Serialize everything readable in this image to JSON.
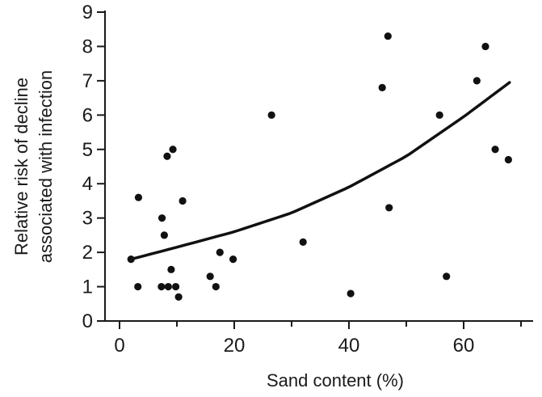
{
  "chart_data": {
    "type": "scatter",
    "xlabel": "Sand content (%)",
    "ylabel_lines": [
      "Relative risk of decline",
      "associated with infection"
    ],
    "xlim": [
      0,
      70
    ],
    "ylim": [
      0,
      9
    ],
    "xticks": [
      0,
      10,
      20,
      30,
      40,
      50,
      60,
      70
    ],
    "xtick_labels": [
      0,
      20,
      40,
      60
    ],
    "yticks": [
      0,
      1,
      2,
      3,
      4,
      5,
      6,
      7,
      8,
      9
    ],
    "grid": false,
    "legend": "none",
    "colors": {
      "points": "#111111",
      "trend": "#111111",
      "axis": "#1a1a1a"
    },
    "series": [
      {
        "points": [
          [
            2,
            1.8
          ],
          [
            3.2,
            1.0
          ],
          [
            3.3,
            3.6
          ],
          [
            7.3,
            1.0
          ],
          [
            7.4,
            3.0
          ],
          [
            7.8,
            2.5
          ],
          [
            8.3,
            4.8
          ],
          [
            8.5,
            1.0
          ],
          [
            9,
            1.5
          ],
          [
            9.3,
            5.0
          ],
          [
            9.8,
            1.0
          ],
          [
            10.3,
            0.7
          ],
          [
            11,
            3.5
          ],
          [
            15.8,
            1.3
          ],
          [
            16.8,
            1.0
          ],
          [
            17.5,
            2.0
          ],
          [
            19.8,
            1.8
          ],
          [
            26.5,
            6.0
          ],
          [
            32,
            2.3
          ],
          [
            40.3,
            0.8
          ],
          [
            45.8,
            6.8
          ],
          [
            46.8,
            8.3
          ],
          [
            47,
            3.3
          ],
          [
            55.8,
            6.0
          ],
          [
            57,
            1.3
          ],
          [
            62.3,
            7.0
          ],
          [
            63.8,
            8.0
          ],
          [
            65.5,
            5.0
          ],
          [
            67.8,
            4.7
          ]
        ]
      }
    ],
    "trend_line": {
      "type": "exponential",
      "points": [
        [
          2,
          1.8
        ],
        [
          10,
          2.15
        ],
        [
          20,
          2.6
        ],
        [
          30,
          3.15
        ],
        [
          40,
          3.9
        ],
        [
          50,
          4.8
        ],
        [
          60,
          5.95
        ],
        [
          68,
          6.95
        ]
      ]
    }
  }
}
